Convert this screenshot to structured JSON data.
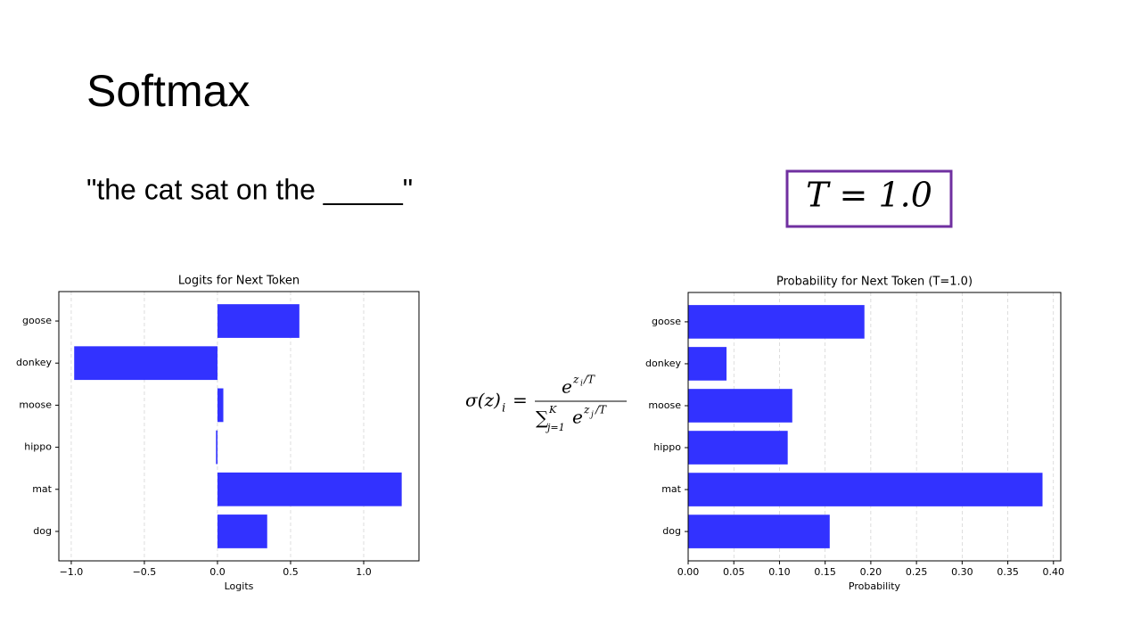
{
  "title": "Softmax",
  "prompt": "\"the cat sat on the _____\"",
  "temperature_label": "T = 1.0",
  "formula": {
    "lhs": "σ(z)",
    "lhs_sub": "i",
    "equals": "=",
    "num_base": "e",
    "num_exp": "z",
    "num_exp_sub": "i",
    "num_exp_rest": "/T",
    "den_sum": "∑",
    "den_sum_sub": "j=1",
    "den_sum_sup": "K",
    "den_base": "e",
    "den_exp": "z",
    "den_exp_sub": "j",
    "den_exp_rest": "/T"
  },
  "chart_data": [
    {
      "type": "barh",
      "title": "Logits for Next Token",
      "x_label": "Logits",
      "categories": [
        "goose",
        "donkey",
        "moose",
        "hippo",
        "mat",
        "dog"
      ],
      "values": [
        0.56,
        -0.98,
        0.04,
        -0.01,
        1.26,
        0.34
      ],
      "color": "#3232ff",
      "xlim": [
        -1.085,
        1.378
      ],
      "xticks": [
        {
          "value": -1.0,
          "label": "−1.0"
        },
        {
          "value": -0.5,
          "label": "−0.5"
        },
        {
          "value": 0.0,
          "label": "0.0"
        },
        {
          "value": 0.5,
          "label": "0.5"
        },
        {
          "value": 1.0,
          "label": "1.0"
        }
      ],
      "grid": true
    },
    {
      "type": "barh",
      "title": "Probability for Next Token (T=1.0)",
      "x_label": "Probability",
      "categories": [
        "goose",
        "donkey",
        "moose",
        "hippo",
        "mat",
        "dog"
      ],
      "values": [
        0.193,
        0.042,
        0.114,
        0.109,
        0.388,
        0.155
      ],
      "color": "#3232ff",
      "xlim": [
        0,
        0.408
      ],
      "xticks": [
        {
          "value": 0,
          "label": "0.00"
        },
        {
          "value": 0.05,
          "label": "0.05"
        },
        {
          "value": 0.1,
          "label": "0.10"
        },
        {
          "value": 0.15,
          "label": "0.15"
        },
        {
          "value": 0.2,
          "label": "0.20"
        },
        {
          "value": 0.25,
          "label": "0.25"
        },
        {
          "value": 0.3,
          "label": "0.30"
        },
        {
          "value": 0.35,
          "label": "0.35"
        },
        {
          "value": 0.4,
          "label": "0.40"
        }
      ],
      "grid": true
    }
  ]
}
